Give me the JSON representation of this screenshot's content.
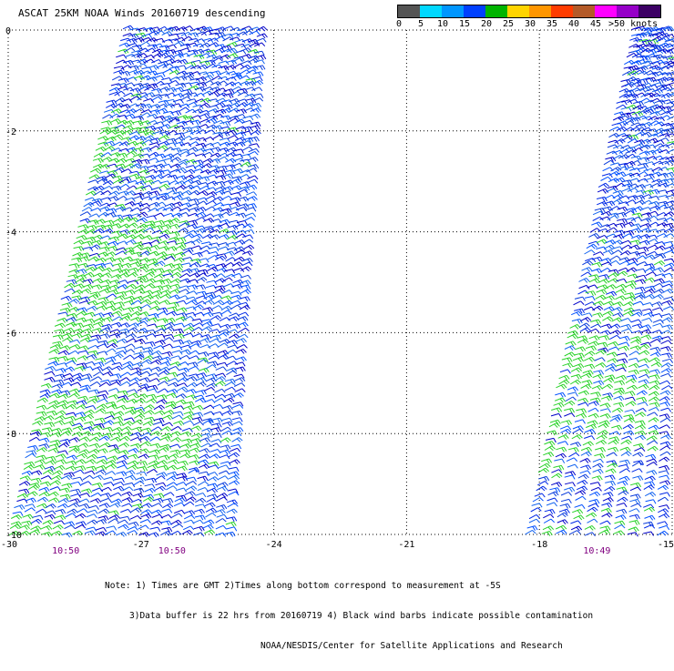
{
  "chart_data": {
    "type": "scatter",
    "title": "ASCAT 25KM NOAA Winds 20160719 descending",
    "x_ticks": [
      -30,
      -27,
      -24,
      -21,
      -18,
      -15
    ],
    "x_tick_labels": [
      "-30",
      "-27",
      "-24",
      "-21",
      "-18",
      "-15"
    ],
    "y_ticks": [
      0,
      -2,
      -4,
      -6,
      -8,
      -10
    ],
    "y_tick_labels": [
      "0",
      "-2",
      "-4",
      "-6",
      "-8",
      "-10"
    ],
    "xlim": [
      -30,
      -15
    ],
    "ylim": [
      -10,
      0
    ],
    "grid": true,
    "grid_style": "dotted",
    "time_labels": [
      {
        "text": "10:50",
        "lon": -28.7
      },
      {
        "text": "10:50",
        "lon": -26.3
      },
      {
        "text": "10:49",
        "lon": -16.7
      }
    ],
    "wind_scale": {
      "labels": [
        "0",
        "5",
        "10",
        "15",
        "20",
        "25",
        "30",
        "35",
        "40",
        "45",
        ">50 knots"
      ],
      "colors": [
        "#545454",
        "#00d8ff",
        "#0096ff",
        "#0040ff",
        "#00b400",
        "#ffd400",
        "#ff9600",
        "#ff3c00",
        "#b45a28",
        "#ff00ff",
        "#9600c8",
        "#3c0064"
      ]
    },
    "swaths": [
      {
        "name": "west swath",
        "corners": [
          [
            -27.4,
            0
          ],
          [
            -24.4,
            0
          ],
          [
            -25.1,
            -10
          ],
          [
            -30.0,
            -10
          ]
        ],
        "speed_range_knots": [
          10,
          20
        ]
      },
      {
        "name": "east swath",
        "corners": [
          [
            -15.9,
            0
          ],
          [
            -15.0,
            0
          ],
          [
            -15.0,
            -10
          ],
          [
            -18.3,
            -10
          ]
        ],
        "speed_range_knots": [
          10,
          20
        ]
      }
    ]
  },
  "notes": [
    "Note: 1) Times are GMT 2)Times along bottom correspond to measurement at -5S",
    "3)Data buffer is 22 hrs from 20160719 4) Black wind barbs indicate possible contamination",
    "NOAA/NESDIS/Center for Satellite Applications and Research"
  ]
}
